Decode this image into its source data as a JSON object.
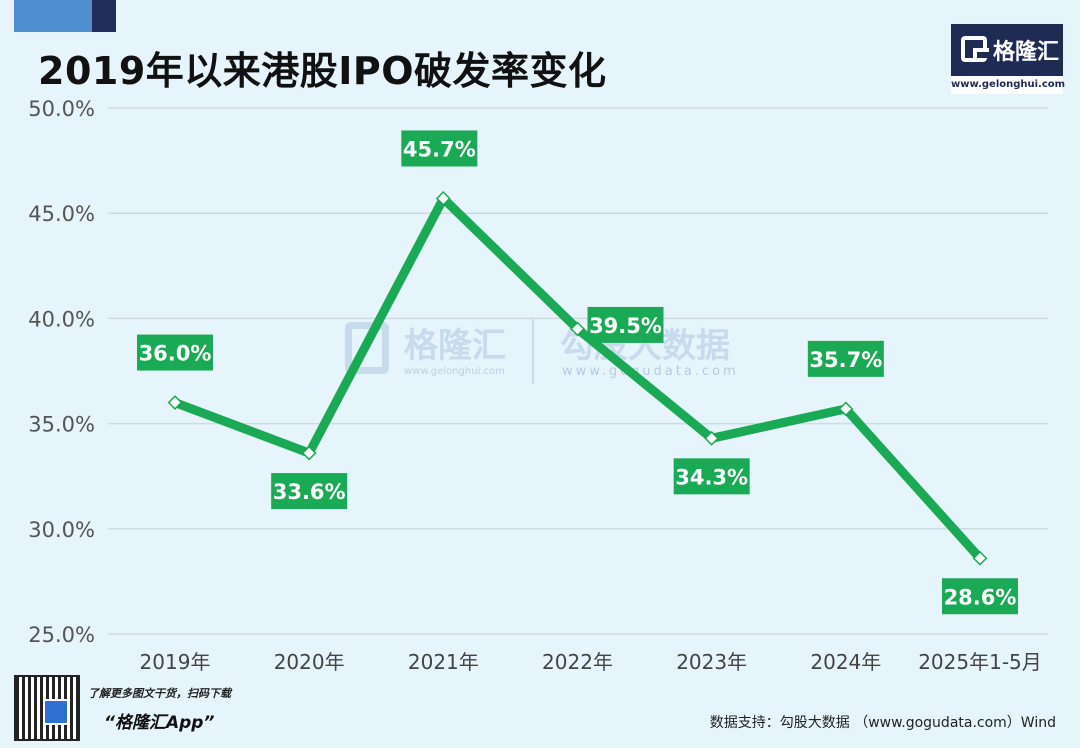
{
  "title": "2019年以来港股IPO破发率变化",
  "logo": {
    "name": "格隆汇",
    "url": "www.gelonghui.com"
  },
  "watermark": {
    "left_text": "格隆汇",
    "left_url": "www.gelonghui.com",
    "right_text": "勾股大数据",
    "right_url": "www.gogudata.com"
  },
  "footer": {
    "promo_line1": "了解更多图文干货，扫码下载",
    "promo_line2": "“格隆汇App”",
    "source": "数据支持：勾股大数据 （www.gogudata.com）Wind"
  },
  "colors": {
    "line": "#1aaa55",
    "label_bg": "#1aaa55",
    "grid": "#cfdbe3",
    "background": "#e6f4fb"
  },
  "chart_data": {
    "type": "line",
    "title": "2019年以来港股IPO破发率变化",
    "xlabel": "",
    "ylabel": "",
    "categories": [
      "2019年",
      "2020年",
      "2021年",
      "2022年",
      "2023年",
      "2024年",
      "2025年1-5月"
    ],
    "series": [
      {
        "values": [
          36.0,
          33.6,
          45.7,
          39.5,
          34.3,
          35.7,
          28.6
        ],
        "labels": [
          "36.0%",
          "33.6%",
          "45.7%",
          "39.5%",
          "34.3%",
          "35.7%",
          "28.6%"
        ]
      }
    ],
    "label_positions": [
      "above",
      "below",
      "above",
      "right",
      "below",
      "above",
      "below"
    ],
    "ylim": [
      25,
      50
    ],
    "yticks": [
      25,
      30,
      35,
      40,
      45,
      50
    ],
    "ytick_labels": [
      "25.0%",
      "30.0%",
      "35.0%",
      "40.0%",
      "45.0%",
      "50.0%"
    ],
    "grid": true,
    "legend": "none"
  }
}
